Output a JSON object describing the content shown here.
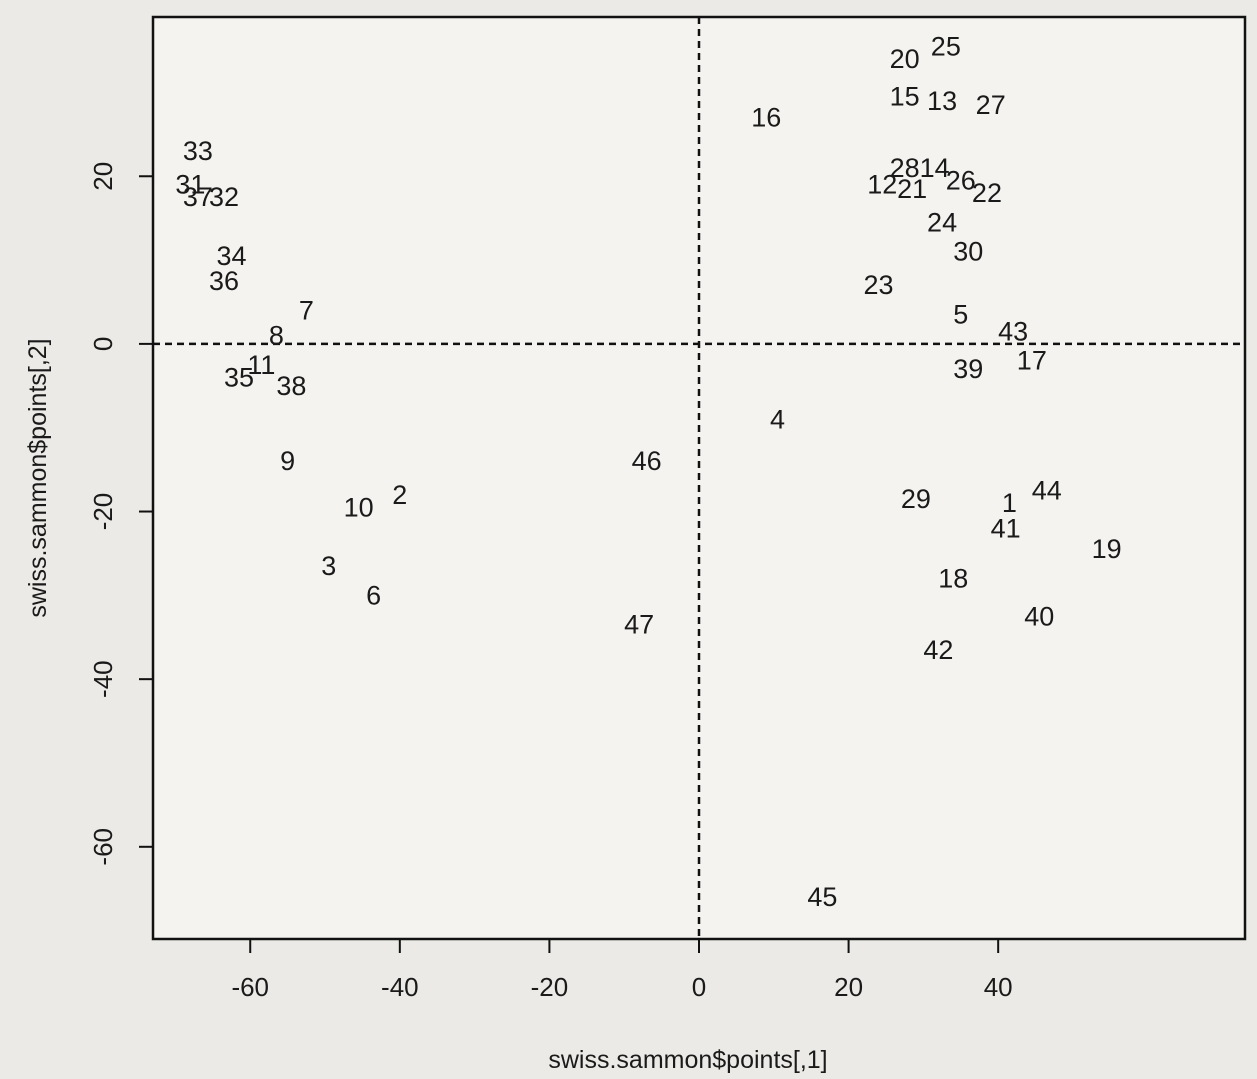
{
  "chart_data": {
    "type": "scatter",
    "title": "",
    "xlabel": "swiss.sammon$points[,1]",
    "ylabel": "swiss.sammon$points[,2]",
    "xlim": [
      -73,
      73
    ],
    "ylim": [
      -71,
      39
    ],
    "xticks": [
      -60,
      -40,
      -20,
      0,
      20,
      40
    ],
    "yticks": [
      -60,
      -40,
      -20,
      0,
      20
    ],
    "grid": false,
    "reference_lines": {
      "x": 0,
      "y": 0,
      "style": "dashed"
    },
    "points": [
      {
        "label": "1",
        "x": 41.5,
        "y": -19
      },
      {
        "label": "2",
        "x": -40,
        "y": -18
      },
      {
        "label": "3",
        "x": -49.5,
        "y": -26.5
      },
      {
        "label": "4",
        "x": 10.5,
        "y": -9
      },
      {
        "label": "5",
        "x": 35,
        "y": 3.5
      },
      {
        "label": "6",
        "x": -43.5,
        "y": -30
      },
      {
        "label": "7",
        "x": -52.5,
        "y": 4
      },
      {
        "label": "8",
        "x": -56.5,
        "y": 1
      },
      {
        "label": "9",
        "x": -55,
        "y": -14
      },
      {
        "label": "10",
        "x": -45.5,
        "y": -19.5
      },
      {
        "label": "11",
        "x": -58.5,
        "y": -2.5
      },
      {
        "label": "12",
        "x": 24.5,
        "y": 19
      },
      {
        "label": "13",
        "x": 32.5,
        "y": 29
      },
      {
        "label": "14",
        "x": 31.5,
        "y": 21
      },
      {
        "label": "15",
        "x": 27.5,
        "y": 29.5
      },
      {
        "label": "16",
        "x": 9,
        "y": 27
      },
      {
        "label": "17",
        "x": 44.5,
        "y": -2
      },
      {
        "label": "18",
        "x": 34,
        "y": -28
      },
      {
        "label": "19",
        "x": 54.5,
        "y": -24.5
      },
      {
        "label": "20",
        "x": 27.5,
        "y": 34
      },
      {
        "label": "21",
        "x": 28.5,
        "y": 18.5
      },
      {
        "label": "22",
        "x": 38.5,
        "y": 18
      },
      {
        "label": "23",
        "x": 24,
        "y": 7
      },
      {
        "label": "24",
        "x": 32.5,
        "y": 14.5
      },
      {
        "label": "25",
        "x": 33,
        "y": 35.5
      },
      {
        "label": "26",
        "x": 35,
        "y": 19.5
      },
      {
        "label": "27",
        "x": 39,
        "y": 28.5
      },
      {
        "label": "28",
        "x": 27.5,
        "y": 21
      },
      {
        "label": "29",
        "x": 29,
        "y": -18.5
      },
      {
        "label": "30",
        "x": 36,
        "y": 11
      },
      {
        "label": "31",
        "x": -68,
        "y": 19
      },
      {
        "label": "32",
        "x": -63.5,
        "y": 17.5
      },
      {
        "label": "33",
        "x": -67,
        "y": 23
      },
      {
        "label": "34",
        "x": -62.5,
        "y": 10.5
      },
      {
        "label": "35",
        "x": -61.5,
        "y": -4
      },
      {
        "label": "36",
        "x": -63.5,
        "y": 7.5
      },
      {
        "label": "37",
        "x": -67,
        "y": 17.5
      },
      {
        "label": "38",
        "x": -54.5,
        "y": -5
      },
      {
        "label": "39",
        "x": 36,
        "y": -3
      },
      {
        "label": "40",
        "x": 45.5,
        "y": -32.5
      },
      {
        "label": "41",
        "x": 41,
        "y": -22
      },
      {
        "label": "42",
        "x": 32,
        "y": -36.5
      },
      {
        "label": "43",
        "x": 42,
        "y": 1.5
      },
      {
        "label": "44",
        "x": 46.5,
        "y": -17.5
      },
      {
        "label": "45",
        "x": 16.5,
        "y": -66
      },
      {
        "label": "46",
        "x": -7,
        "y": -14
      },
      {
        "label": "47",
        "x": -8,
        "y": -33.5
      }
    ]
  }
}
